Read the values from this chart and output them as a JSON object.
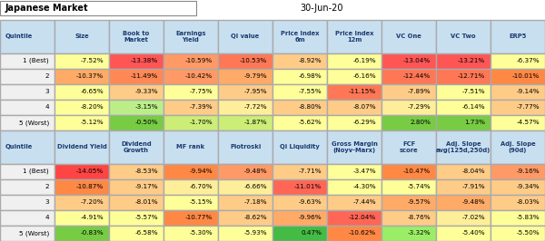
{
  "title_left": "Japanese Market",
  "title_right": "30-Jun-20",
  "table1_headers": [
    "Quintile",
    "Size",
    "Book to\nMarket",
    "Earnings\nYield",
    "QI value",
    "Price Index\n6m",
    "Price Index\n12m",
    "VC One",
    "VC Two",
    "ERP5"
  ],
  "table1_rows": [
    [
      "1 (Best)",
      "-7.52%",
      "-13.38%",
      "-10.59%",
      "-10.53%",
      "-8.92%",
      "-6.19%",
      "-13.04%",
      "-13.21%",
      "-6.37%"
    ],
    [
      "2",
      "-10.37%",
      "-11.49%",
      "-10.42%",
      "-9.79%",
      "-6.98%",
      "-6.16%",
      "-12.44%",
      "-12.71%",
      "-10.01%"
    ],
    [
      "3",
      "-6.65%",
      "-9.33%",
      "-7.75%",
      "-7.95%",
      "-7.55%",
      "-11.15%",
      "-7.89%",
      "-7.51%",
      "-9.14%"
    ],
    [
      "4",
      "-8.20%",
      "-3.15%",
      "-7.39%",
      "-7.72%",
      "-8.80%",
      "-8.07%",
      "-7.29%",
      "-6.14%",
      "-7.77%"
    ],
    [
      "5 (Worst)",
      "-5.12%",
      "-0.50%",
      "-1.70%",
      "-1.87%",
      "-5.62%",
      "-6.29%",
      "2.80%",
      "1.73%",
      "-4.57%"
    ]
  ],
  "t1_colors": [
    [
      "#f0f0f0",
      "#ffff99",
      "#ff5555",
      "#ff9966",
      "#ff7755",
      "#ffcc88",
      "#ffff99",
      "#ff5555",
      "#ff5555",
      "#ffff99"
    ],
    [
      "#f0f0f0",
      "#ffaa66",
      "#ff8855",
      "#ff9966",
      "#ffaa66",
      "#ffff99",
      "#ffff99",
      "#ff7755",
      "#ff7755",
      "#ff8844"
    ],
    [
      "#f0f0f0",
      "#ffff99",
      "#ffcc88",
      "#ffff99",
      "#ffcc88",
      "#ffff99",
      "#ff7755",
      "#ffcc88",
      "#ffff99",
      "#ffcc88"
    ],
    [
      "#f0f0f0",
      "#ffff99",
      "#bbee88",
      "#ffcc88",
      "#ffee99",
      "#ffcc88",
      "#ffcc88",
      "#ffee99",
      "#ffff99",
      "#ffcc88"
    ],
    [
      "#f0f0f0",
      "#ffff99",
      "#77cc44",
      "#ccee77",
      "#ccee77",
      "#ffff99",
      "#ffff99",
      "#77cc44",
      "#77cc44",
      "#ffff99"
    ]
  ],
  "table2_headers": [
    "Quintile",
    "Dividend Yield",
    "Dividend\nGrowth",
    "MF rank",
    "Piotroski",
    "Qi Liquidity",
    "Gross Margin\n(Noyv-Marx)",
    "FCF\nscore",
    "Adj. Slope\navg(125d,250d)",
    "Adj. Slope\n(90d)"
  ],
  "table2_rows": [
    [
      "1 (Best)",
      "-14.05%",
      "-8.53%",
      "-9.94%",
      "-9.48%",
      "-7.71%",
      "-3.47%",
      "-10.47%",
      "-8.04%",
      "-9.16%"
    ],
    [
      "2",
      "-10.87%",
      "-9.17%",
      "-6.70%",
      "-6.66%",
      "-11.01%",
      "-4.30%",
      "-5.74%",
      "-7.91%",
      "-9.34%"
    ],
    [
      "3",
      "-7.20%",
      "-8.01%",
      "-5.15%",
      "-7.18%",
      "-9.63%",
      "-7.44%",
      "-9.57%",
      "-9.48%",
      "-8.03%"
    ],
    [
      "4",
      "-4.91%",
      "-5.57%",
      "-10.77%",
      "-8.62%",
      "-9.96%",
      "-12.04%",
      "-8.76%",
      "-7.02%",
      "-5.83%"
    ],
    [
      "5 (Worst)",
      "-0.83%",
      "-6.58%",
      "-5.30%",
      "-5.93%",
      "0.47%",
      "-10.62%",
      "-3.32%",
      "-5.40%",
      "-5.50%"
    ]
  ],
  "t2_colors": [
    [
      "#f0f0f0",
      "#ff4444",
      "#ffcc88",
      "#ff8844",
      "#ff9966",
      "#ffcc88",
      "#ffff99",
      "#ff8844",
      "#ffcc88",
      "#ff9966"
    ],
    [
      "#f0f0f0",
      "#ff8844",
      "#ffcc88",
      "#ffee99",
      "#ffee99",
      "#ff6655",
      "#ffff99",
      "#ffff99",
      "#ffcc88",
      "#ffcc88"
    ],
    [
      "#f0f0f0",
      "#ffcc88",
      "#ffcc88",
      "#ffff99",
      "#ffcc88",
      "#ffcc88",
      "#ffcc88",
      "#ffaa66",
      "#ffaa66",
      "#ffcc88"
    ],
    [
      "#f0f0f0",
      "#ffff99",
      "#ffff99",
      "#ff8844",
      "#ffcc88",
      "#ffaa66",
      "#ff6655",
      "#ffcc88",
      "#ffee99",
      "#ffff99"
    ],
    [
      "#f0f0f0",
      "#77cc44",
      "#ffff99",
      "#ffff99",
      "#ffff99",
      "#44bb44",
      "#ff8844",
      "#99ee66",
      "#ffff99",
      "#ffff99"
    ]
  ],
  "header_bg": "#c8dff0",
  "header_fg": "#1a3a6e",
  "border_color": "#aaaaaa",
  "bg_color": "#ffffff",
  "figsize": [
    6.0,
    2.66
  ],
  "dpi": 100
}
